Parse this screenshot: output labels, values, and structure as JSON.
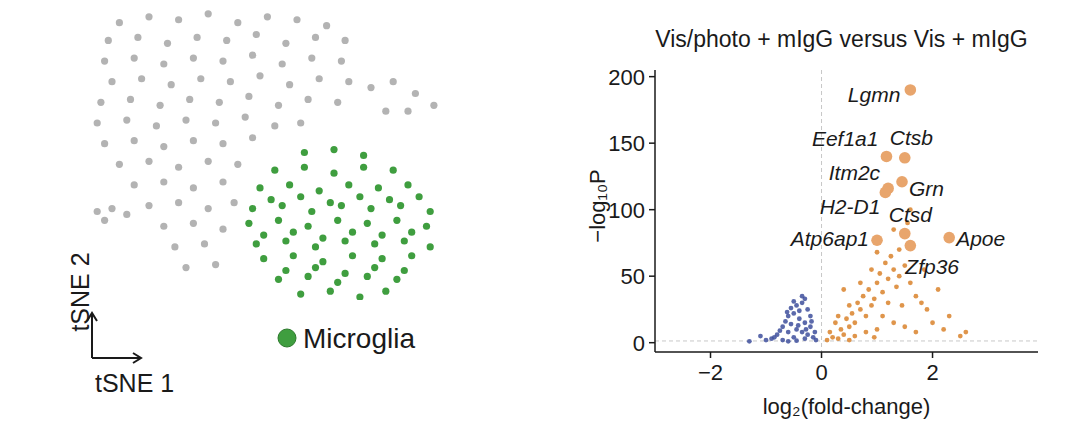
{
  "chart_data": [
    {
      "type": "scatter",
      "xlabel": "tSNE 1",
      "ylabel": "tSNE 2",
      "xlim": [
        0,
        100
      ],
      "ylim": [
        0,
        100
      ],
      "tick_labels": false,
      "legend": "bottom",
      "series": [
        {
          "color": "#b3b3b3",
          "x": [
            12,
            20,
            28,
            36,
            44,
            52,
            60,
            68,
            9,
            17,
            25,
            33,
            41,
            49,
            57,
            65,
            73,
            8,
            16,
            24,
            32,
            40,
            48,
            56,
            64,
            72,
            10,
            18,
            26,
            34,
            42,
            50,
            58,
            66,
            74,
            7,
            15,
            23,
            31,
            39,
            47,
            55,
            63,
            71,
            6,
            14,
            22,
            30,
            38,
            46,
            54,
            61,
            8,
            16,
            24,
            32,
            40,
            48,
            12,
            20,
            28,
            36,
            44,
            16,
            24,
            32,
            40,
            20,
            28,
            36,
            43,
            24,
            32,
            40,
            27,
            35,
            30,
            38,
            6,
            10,
            14,
            8,
            80,
            86,
            92,
            97,
            84,
            90
          ],
          "values": [
            94,
            96,
            95,
            97,
            94,
            96,
            95,
            93,
            88,
            89,
            87,
            89,
            88,
            90,
            87,
            89,
            88,
            81,
            82,
            80,
            82,
            81,
            83,
            80,
            82,
            81,
            74,
            75,
            73,
            75,
            74,
            76,
            73,
            75,
            74,
            67,
            68,
            66,
            68,
            67,
            69,
            66,
            68,
            67,
            60,
            61,
            59,
            61,
            60,
            62,
            59,
            60,
            53,
            54,
            52,
            54,
            53,
            55,
            46,
            47,
            45,
            47,
            46,
            39,
            40,
            38,
            40,
            32,
            33,
            31,
            33,
            25,
            26,
            24,
            18,
            19,
            11,
            12,
            30,
            31,
            29,
            27,
            72,
            74,
            70,
            66,
            64,
            64
          ]
        },
        {
          "name": "Microglia",
          "color": "#3f9e3f",
          "x": [
            62,
            70,
            78,
            54,
            62,
            70,
            78,
            86,
            50,
            58,
            66,
            74,
            82,
            90,
            53,
            61,
            69,
            77,
            85,
            93,
            48,
            56,
            64,
            72,
            80,
            88,
            96,
            47,
            55,
            63,
            71,
            79,
            87,
            95,
            51,
            59,
            67,
            75,
            83,
            91,
            49,
            57,
            65,
            73,
            81,
            89,
            96,
            51,
            59,
            67,
            75,
            83,
            91,
            57,
            65,
            73,
            81,
            89,
            55,
            63,
            71,
            79,
            87,
            61,
            69,
            77,
            84
          ],
          "values": [
            50,
            51,
            49,
            44,
            45,
            43,
            45,
            44,
            38,
            39,
            37,
            39,
            38,
            39,
            34,
            35,
            33,
            35,
            34,
            35,
            31,
            32,
            30,
            32,
            31,
            32,
            30,
            26,
            27,
            25,
            27,
            26,
            27,
            25,
            22,
            23,
            21,
            23,
            22,
            23,
            19,
            20,
            18,
            20,
            19,
            20,
            18,
            14,
            15,
            13,
            15,
            14,
            15,
            10,
            11,
            9,
            11,
            10,
            7,
            8,
            6,
            8,
            7,
            2,
            3,
            1,
            3
          ]
        }
      ]
    },
    {
      "type": "scatter",
      "title": "Vis/photo + mIgG versus Vis + mIgG",
      "xlabel": "log₂(fold-change)",
      "ylabel": "−log₁₀P",
      "xlim": [
        -3,
        3.9
      ],
      "ylim": [
        -7,
        205
      ],
      "xticks": [
        {
          "value": -2,
          "label": "−2"
        },
        0,
        2
      ],
      "yticks": [
        0,
        50,
        100,
        150,
        200
      ],
      "grid": false,
      "reference_lines": {
        "x": 0,
        "y": 1.3
      },
      "series": [
        {
          "color": "#3e4f9c",
          "marker": "small",
          "x": [
            -0.3,
            -0.35,
            -0.45,
            -0.25,
            -0.5,
            -0.6,
            -0.4,
            -0.3,
            -0.55,
            -0.7,
            -0.2,
            -0.45,
            -0.35,
            -0.6,
            -0.8,
            -0.25,
            -0.15,
            -0.5,
            -0.9,
            -1.0,
            -1.3,
            -0.65,
            -0.4,
            -0.55,
            -0.2,
            -0.3,
            -0.1,
            -0.7,
            -0.45,
            -1.1,
            -0.35,
            -0.5,
            -0.75,
            -0.85,
            -0.12,
            -0.6,
            -0.28,
            -0.42,
            -0.18,
            -0.62
          ],
          "values": [
            33,
            30,
            28,
            25,
            22,
            20,
            18,
            15,
            14,
            12,
            12,
            10,
            8,
            8,
            6,
            6,
            4,
            4,
            3,
            2,
            1,
            16,
            24,
            26,
            20,
            3,
            2,
            2,
            1.5,
            5,
            35,
            31,
            9,
            4,
            8,
            1,
            10,
            13,
            16,
            23
          ]
        },
        {
          "color": "#d9822b",
          "marker": "small",
          "x": [
            0.1,
            0.2,
            0.3,
            0.15,
            0.35,
            0.4,
            0.5,
            0.45,
            0.6,
            0.55,
            0.7,
            0.65,
            0.8,
            0.75,
            0.9,
            0.85,
            1.0,
            0.95,
            1.1,
            1.05,
            1.2,
            1.15,
            1.3,
            1.25,
            1.4,
            1.35,
            1.5,
            1.6,
            1.7,
            1.8,
            1.9,
            2.0,
            2.2,
            2.5,
            2.6,
            1.1,
            1.3,
            1.5,
            1.7,
            0.6,
            0.8,
            1.0,
            0.25,
            0.3,
            0.5,
            1.4,
            1.55,
            1.6,
            1.3,
            0.9,
            0.7,
            2.1,
            1.85,
            2.3,
            0.4,
            1.2,
            1.0,
            0.5,
            0.95,
            1.45
          ],
          "values": [
            2,
            4,
            3,
            8,
            10,
            6,
            12,
            18,
            15,
            22,
            25,
            30,
            20,
            35,
            28,
            40,
            45,
            33,
            38,
            52,
            48,
            60,
            55,
            65,
            50,
            42,
            58,
            45,
            35,
            30,
            25,
            15,
            10,
            5,
            8,
            20,
            15,
            12,
            8,
            5,
            8,
            10,
            15,
            20,
            28,
            70,
            90,
            100,
            85,
            55,
            45,
            40,
            55,
            20,
            40,
            30,
            68,
            2,
            4,
            28
          ]
        },
        {
          "color": "#e8a56c",
          "marker": "large",
          "labels": [
            "Lgmn",
            "Eef1a1",
            "Ctsb",
            "Itm2c",
            "Grn",
            "H2-D1",
            "Ctsd",
            "Atp6ap1",
            "Apoe",
            "Zfp36"
          ],
          "x": [
            1.6,
            1.17,
            1.5,
            1.2,
            1.45,
            1.15,
            1.5,
            1.0,
            2.3,
            1.6
          ],
          "values": [
            190,
            140,
            139,
            116,
            121,
            113,
            82,
            77,
            79,
            73
          ]
        }
      ]
    }
  ]
}
